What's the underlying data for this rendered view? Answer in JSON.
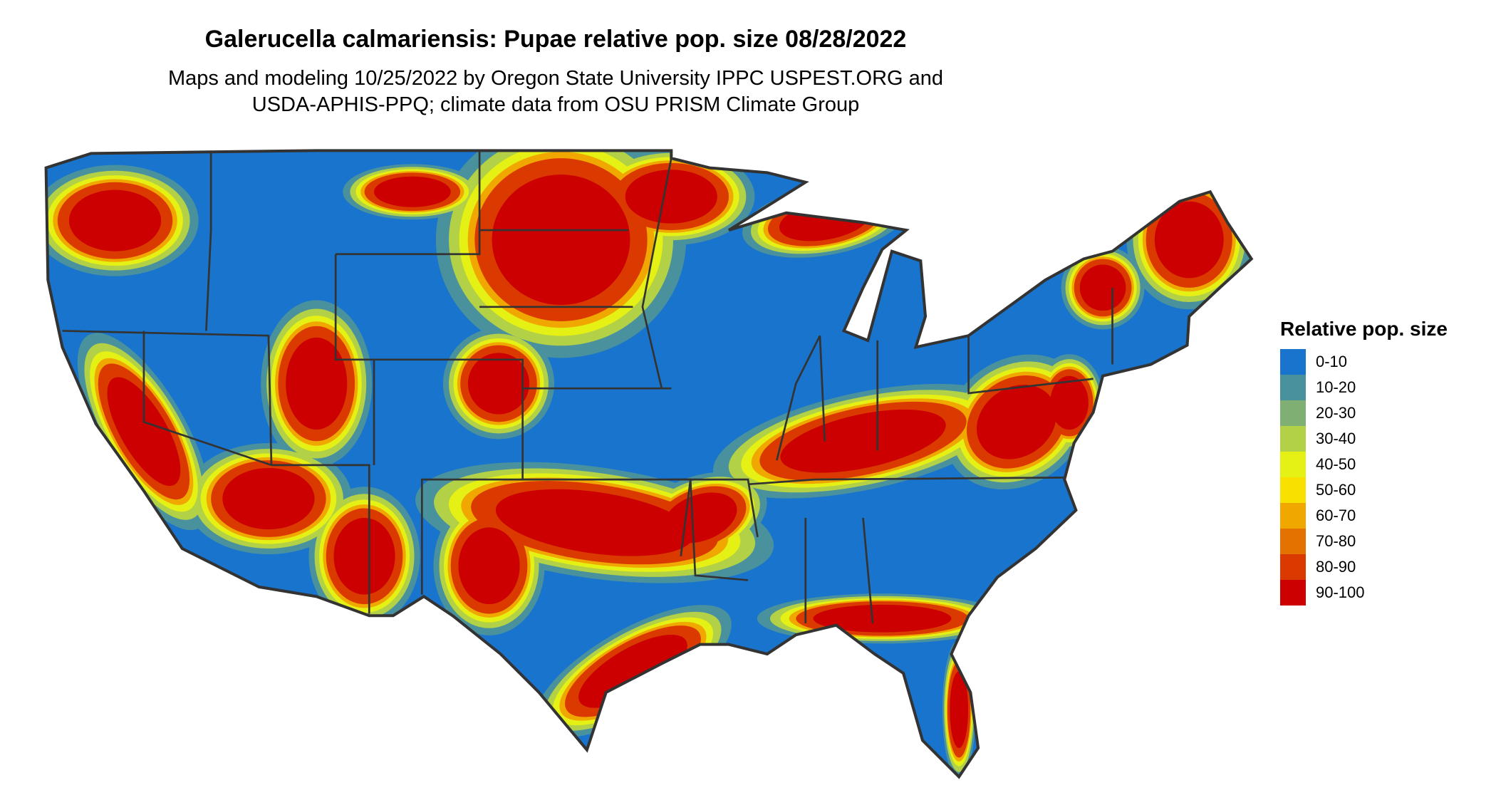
{
  "title": "Galerucella calmariensis: Pupae relative pop. size 08/28/2022",
  "subtitle_line1": "Maps and modeling 10/25/2022 by Oregon State University IPPC USPEST.ORG and",
  "subtitle_line2": "USDA-APHIS-PPQ; climate data from OSU PRISM Climate Group",
  "legend": {
    "title": "Relative pop. size",
    "items": [
      {
        "label": "0-10",
        "color": "#1874CD"
      },
      {
        "label": "10-20",
        "color": "#4A919E"
      },
      {
        "label": "20-30",
        "color": "#7FAF72"
      },
      {
        "label": "30-40",
        "color": "#B2D147"
      },
      {
        "label": "40-50",
        "color": "#E5F014"
      },
      {
        "label": "50-60",
        "color": "#F8E100"
      },
      {
        "label": "60-70",
        "color": "#F0A800"
      },
      {
        "label": "70-80",
        "color": "#E37200"
      },
      {
        "label": "80-90",
        "color": "#DA3A00"
      },
      {
        "label": "90-100",
        "color": "#CC0000"
      }
    ]
  },
  "map": {
    "region": "contiguous-united-states",
    "border_color": "#333333",
    "base_color": "#1874CD"
  }
}
